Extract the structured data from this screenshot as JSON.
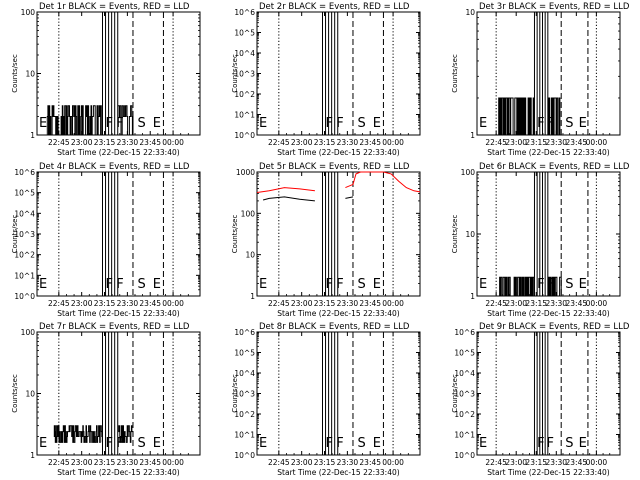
{
  "figure": {
    "xlabel": "Start Time (22-Dec-15 22:33:40)",
    "ylabel": "Counts/sec",
    "time_ticks": [
      "22:45",
      "23:00",
      "23:15",
      "23:30",
      "23:45",
      "00:00"
    ],
    "time_tick_minutes": [
      11.33,
      26.33,
      41.33,
      56.33,
      71.33,
      86.33
    ],
    "x_range_minutes": [
      -3,
      104
    ],
    "colors": {
      "events": "#000000",
      "lld": "#ff0000",
      "axis": "#000000"
    }
  },
  "chart_data": [
    {
      "type": "line",
      "title": "Det 1r BLACK = Events, RED = LLD",
      "y_scale": "log",
      "ylim": [
        1,
        100
      ],
      "ytick_labels": [
        {
          "text": "1",
          "value": 1
        },
        {
          "text": "10",
          "value": 10
        },
        {
          "text": "100",
          "value": 100
        }
      ],
      "event_markers": [
        {
          "label": "E",
          "minute": -3,
          "style": "solid"
        },
        {
          "label": "F",
          "minute": 42,
          "style": "solid"
        },
        {
          "label": "F",
          "minute": 49,
          "style": "solid"
        },
        {
          "label": "S",
          "minute": 63,
          "style": "dashed"
        },
        {
          "label": "E",
          "minute": 73,
          "style": "dashed"
        }
      ],
      "vlines": [
        {
          "minute": 40,
          "style": "solid"
        },
        {
          "minute": 42,
          "style": "solid"
        },
        {
          "minute": 44,
          "style": "solid"
        },
        {
          "minute": 46,
          "style": "solid"
        },
        {
          "minute": 48,
          "style": "solid"
        },
        {
          "minute": 50,
          "style": "solid"
        },
        {
          "minute": 60,
          "style": "dashed"
        },
        {
          "minute": 80,
          "style": "dashed"
        },
        {
          "minute": 11.33,
          "style": "dotted"
        },
        {
          "minute": 86.33,
          "style": "dotted"
        }
      ],
      "series": [
        {
          "name": "Events",
          "color": "#000000",
          "kind": "step",
          "x_start": 1,
          "x_end": 60,
          "steps": 150,
          "levels": [
            1,
            2,
            3
          ],
          "missing": [
            [
              40,
              50
            ]
          ]
        }
      ]
    },
    {
      "type": "line",
      "title": "Det 2r BLACK = Events, RED = LLD",
      "y_scale": "log",
      "ylim": [
        1,
        1000000
      ],
      "ytick_labels": [
        {
          "text": "10^0",
          "value": 1
        },
        {
          "text": "10^1",
          "value": 10
        },
        {
          "text": "10^2",
          "value": 100
        },
        {
          "text": "10^3",
          "value": 1000
        },
        {
          "text": "10^4",
          "value": 10000
        },
        {
          "text": "10^5",
          "value": 100000
        },
        {
          "text": "10^6",
          "value": 1000000
        }
      ],
      "event_markers": [
        {
          "label": "E",
          "minute": -3,
          "style": "solid"
        },
        {
          "label": "F",
          "minute": 42,
          "style": "solid"
        },
        {
          "label": "F",
          "minute": 49,
          "style": "solid"
        },
        {
          "label": "S",
          "minute": 63,
          "style": "dashed"
        },
        {
          "label": "E",
          "minute": 73,
          "style": "dashed"
        }
      ],
      "vlines": [
        {
          "minute": 40,
          "style": "solid"
        },
        {
          "minute": 42,
          "style": "solid"
        },
        {
          "minute": 44,
          "style": "solid"
        },
        {
          "minute": 46,
          "style": "solid"
        },
        {
          "minute": 48,
          "style": "solid"
        },
        {
          "minute": 50,
          "style": "solid"
        },
        {
          "minute": 60,
          "style": "dashed"
        },
        {
          "minute": 80,
          "style": "dashed"
        },
        {
          "minute": 11.33,
          "style": "dotted"
        },
        {
          "minute": 86.33,
          "style": "dotted"
        }
      ],
      "series": []
    },
    {
      "type": "line",
      "title": "Det 3r BLACK = Events, RED = LLD",
      "y_scale": "log",
      "ylim": [
        1,
        10
      ],
      "ytick_labels": [
        {
          "text": "1",
          "value": 1
        },
        {
          "text": "10",
          "value": 10
        }
      ],
      "event_markers": [
        {
          "label": "E",
          "minute": -3,
          "style": "solid"
        },
        {
          "label": "F",
          "minute": 42,
          "style": "solid"
        },
        {
          "label": "F",
          "minute": 49,
          "style": "solid"
        },
        {
          "label": "S",
          "minute": 63,
          "style": "dashed"
        },
        {
          "label": "E",
          "minute": 73,
          "style": "dashed"
        }
      ],
      "vlines": [
        {
          "minute": 40,
          "style": "solid"
        },
        {
          "minute": 42,
          "style": "solid"
        },
        {
          "minute": 44,
          "style": "solid"
        },
        {
          "minute": 46,
          "style": "solid"
        },
        {
          "minute": 48,
          "style": "solid"
        },
        {
          "minute": 50,
          "style": "solid"
        },
        {
          "minute": 60,
          "style": "dashed"
        },
        {
          "minute": 80,
          "style": "dashed"
        },
        {
          "minute": 11.33,
          "style": "dotted"
        },
        {
          "minute": 86.33,
          "style": "dotted"
        }
      ],
      "series": [
        {
          "name": "Events",
          "color": "#000000",
          "kind": "step",
          "x_start": 13,
          "x_end": 59,
          "steps": 180,
          "levels": [
            1,
            2
          ],
          "missing": [
            [
              40,
              50
            ]
          ]
        }
      ]
    },
    {
      "type": "line",
      "title": "Det 4r BLACK = Events, RED = LLD",
      "y_scale": "log",
      "ylim": [
        1,
        1000000
      ],
      "ytick_labels": [
        {
          "text": "10^0",
          "value": 1
        },
        {
          "text": "10^1",
          "value": 10
        },
        {
          "text": "10^2",
          "value": 100
        },
        {
          "text": "10^3",
          "value": 1000
        },
        {
          "text": "10^4",
          "value": 10000
        },
        {
          "text": "10^5",
          "value": 100000
        },
        {
          "text": "10^6",
          "value": 1000000
        }
      ],
      "event_markers": [
        {
          "label": "E",
          "minute": -3,
          "style": "solid"
        },
        {
          "label": "F",
          "minute": 42,
          "style": "solid"
        },
        {
          "label": "F",
          "minute": 49,
          "style": "solid"
        },
        {
          "label": "S",
          "minute": 63,
          "style": "dashed"
        },
        {
          "label": "E",
          "minute": 73,
          "style": "dashed"
        }
      ],
      "vlines": [
        {
          "minute": 40,
          "style": "solid"
        },
        {
          "minute": 42,
          "style": "solid"
        },
        {
          "minute": 44,
          "style": "solid"
        },
        {
          "minute": 46,
          "style": "solid"
        },
        {
          "minute": 48,
          "style": "solid"
        },
        {
          "minute": 50,
          "style": "solid"
        },
        {
          "minute": 60,
          "style": "dashed"
        },
        {
          "minute": 80,
          "style": "dashed"
        },
        {
          "minute": 11.33,
          "style": "dotted"
        },
        {
          "minute": 86.33,
          "style": "dotted"
        }
      ],
      "series": []
    },
    {
      "type": "line",
      "title": "Det 5r BLACK = Events, RED = LLD",
      "y_scale": "log",
      "ylim": [
        1,
        1000
      ],
      "ytick_labels": [
        {
          "text": "1",
          "value": 1
        },
        {
          "text": "10",
          "value": 10
        },
        {
          "text": "100",
          "value": 100
        },
        {
          "text": "1000",
          "value": 1000
        }
      ],
      "event_markers": [
        {
          "label": "E",
          "minute": -3,
          "style": "solid"
        },
        {
          "label": "F",
          "minute": 42,
          "style": "solid"
        },
        {
          "label": "F",
          "minute": 49,
          "style": "solid"
        },
        {
          "label": "S",
          "minute": 63,
          "style": "dashed"
        },
        {
          "label": "E",
          "minute": 73,
          "style": "dashed"
        }
      ],
      "vlines": [
        {
          "minute": 40,
          "style": "solid"
        },
        {
          "minute": 42,
          "style": "solid"
        },
        {
          "minute": 44,
          "style": "solid"
        },
        {
          "minute": 46,
          "style": "solid"
        },
        {
          "minute": 48,
          "style": "solid"
        },
        {
          "minute": 50,
          "style": "solid"
        },
        {
          "minute": 60,
          "style": "dashed"
        },
        {
          "minute": 80,
          "style": "dashed"
        },
        {
          "minute": 11.33,
          "style": "dotted"
        },
        {
          "minute": 86.33,
          "style": "dotted"
        }
      ],
      "series": [
        {
          "name": "LLD",
          "color": "#ff0000",
          "kind": "curve",
          "x": [
            -3,
            5,
            15,
            25,
            35,
            45,
            55,
            60,
            62,
            65,
            70,
            75,
            80,
            85,
            90,
            95,
            100,
            104
          ],
          "y": [
            320,
            350,
            420,
            390,
            350,
            340,
            420,
            500,
            900,
            1200,
            1300,
            1200,
            1000,
            900,
            600,
            420,
            350,
            330
          ],
          "missing": [
            [
              40,
              50
            ]
          ]
        },
        {
          "name": "Events",
          "color": "#000000",
          "kind": "curve",
          "x": [
            1,
            5,
            15,
            25,
            35,
            45,
            55,
            60
          ],
          "y": [
            210,
            230,
            250,
            220,
            200,
            190,
            230,
            250
          ],
          "missing": [
            [
              40,
              50
            ]
          ]
        }
      ]
    },
    {
      "type": "line",
      "title": "Det 6r BLACK = Events, RED = LLD",
      "y_scale": "log",
      "ylim": [
        1,
        100
      ],
      "ytick_labels": [
        {
          "text": "1",
          "value": 1
        },
        {
          "text": "10",
          "value": 10
        },
        {
          "text": "100",
          "value": 100
        }
      ],
      "event_markers": [
        {
          "label": "E",
          "minute": -3,
          "style": "solid"
        },
        {
          "label": "F",
          "minute": 42,
          "style": "solid"
        },
        {
          "label": "F",
          "minute": 49,
          "style": "solid"
        },
        {
          "label": "S",
          "minute": 63,
          "style": "dashed"
        },
        {
          "label": "E",
          "minute": 73,
          "style": "dashed"
        }
      ],
      "vlines": [
        {
          "minute": 40,
          "style": "solid"
        },
        {
          "minute": 42,
          "style": "solid"
        },
        {
          "minute": 44,
          "style": "solid"
        },
        {
          "minute": 46,
          "style": "solid"
        },
        {
          "minute": 48,
          "style": "solid"
        },
        {
          "minute": 50,
          "style": "solid"
        },
        {
          "minute": 60,
          "style": "dashed"
        },
        {
          "minute": 80,
          "style": "dashed"
        },
        {
          "minute": 11.33,
          "style": "dotted"
        },
        {
          "minute": 86.33,
          "style": "dotted"
        }
      ],
      "series": [
        {
          "name": "Events",
          "color": "#000000",
          "kind": "step",
          "x_start": 13,
          "x_end": 60,
          "steps": 160,
          "levels": [
            1,
            2
          ],
          "missing": [
            [
              40,
              50
            ]
          ]
        }
      ]
    },
    {
      "type": "line",
      "title": "Det 7r BLACK = Events, RED = LLD",
      "y_scale": "log",
      "ylim": [
        1,
        100
      ],
      "ytick_labels": [
        {
          "text": "1",
          "value": 1
        },
        {
          "text": "10",
          "value": 10
        },
        {
          "text": "100",
          "value": 100
        }
      ],
      "event_markers": [
        {
          "label": "E",
          "minute": -3,
          "style": "solid"
        },
        {
          "label": "F",
          "minute": 42,
          "style": "solid"
        },
        {
          "label": "F",
          "minute": 49,
          "style": "solid"
        },
        {
          "label": "S",
          "minute": 63,
          "style": "dashed"
        },
        {
          "label": "E",
          "minute": 73,
          "style": "dashed"
        }
      ],
      "vlines": [
        {
          "minute": 40,
          "style": "solid"
        },
        {
          "minute": 42,
          "style": "solid"
        },
        {
          "minute": 44,
          "style": "solid"
        },
        {
          "minute": 46,
          "style": "solid"
        },
        {
          "minute": 48,
          "style": "solid"
        },
        {
          "minute": 50,
          "style": "solid"
        },
        {
          "minute": 60,
          "style": "dashed"
        },
        {
          "minute": 80,
          "style": "dashed"
        },
        {
          "minute": 11.33,
          "style": "dotted"
        },
        {
          "minute": 86.33,
          "style": "dotted"
        }
      ],
      "series": [
        {
          "name": "Events",
          "color": "#000000",
          "kind": "step",
          "x_start": 8,
          "x_end": 60,
          "steps": 150,
          "levels": [
            1.6,
            2,
            2.4,
            3
          ],
          "missing": [
            [
              40,
              50
            ]
          ]
        }
      ]
    },
    {
      "type": "line",
      "title": "Det 8r BLACK = Events, RED = LLD",
      "y_scale": "log",
      "ylim": [
        1,
        1000000
      ],
      "ytick_labels": [
        {
          "text": "10^0",
          "value": 1
        },
        {
          "text": "10^1",
          "value": 10
        },
        {
          "text": "10^2",
          "value": 100
        },
        {
          "text": "10^3",
          "value": 1000
        },
        {
          "text": "10^4",
          "value": 10000
        },
        {
          "text": "10^5",
          "value": 100000
        },
        {
          "text": "10^6",
          "value": 1000000
        }
      ],
      "event_markers": [
        {
          "label": "E",
          "minute": -3,
          "style": "solid"
        },
        {
          "label": "F",
          "minute": 42,
          "style": "solid"
        },
        {
          "label": "F",
          "minute": 49,
          "style": "solid"
        },
        {
          "label": "S",
          "minute": 63,
          "style": "dashed"
        },
        {
          "label": "E",
          "minute": 73,
          "style": "dashed"
        }
      ],
      "vlines": [
        {
          "minute": 40,
          "style": "solid"
        },
        {
          "minute": 42,
          "style": "solid"
        },
        {
          "minute": 44,
          "style": "solid"
        },
        {
          "minute": 46,
          "style": "solid"
        },
        {
          "minute": 48,
          "style": "solid"
        },
        {
          "minute": 50,
          "style": "solid"
        },
        {
          "minute": 60,
          "style": "dashed"
        },
        {
          "minute": 80,
          "style": "dashed"
        },
        {
          "minute": 11.33,
          "style": "dotted"
        },
        {
          "minute": 86.33,
          "style": "dotted"
        }
      ],
      "series": []
    },
    {
      "type": "line",
      "title": "Det 9r BLACK = Events, RED = LLD",
      "y_scale": "log",
      "ylim": [
        1,
        1000000
      ],
      "ytick_labels": [
        {
          "text": "10^0",
          "value": 1
        },
        {
          "text": "10^1",
          "value": 10
        },
        {
          "text": "10^2",
          "value": 100
        },
        {
          "text": "10^3",
          "value": 1000
        },
        {
          "text": "10^4",
          "value": 10000
        },
        {
          "text": "10^5",
          "value": 100000
        },
        {
          "text": "10^6",
          "value": 1000000
        }
      ],
      "event_markers": [
        {
          "label": "E",
          "minute": -3,
          "style": "solid"
        },
        {
          "label": "F",
          "minute": 42,
          "style": "solid"
        },
        {
          "label": "F",
          "minute": 49,
          "style": "solid"
        },
        {
          "label": "S",
          "minute": 63,
          "style": "dashed"
        },
        {
          "label": "E",
          "minute": 73,
          "style": "dashed"
        }
      ],
      "vlines": [
        {
          "minute": 40,
          "style": "solid"
        },
        {
          "minute": 42,
          "style": "solid"
        },
        {
          "minute": 44,
          "style": "solid"
        },
        {
          "minute": 46,
          "style": "solid"
        },
        {
          "minute": 48,
          "style": "solid"
        },
        {
          "minute": 50,
          "style": "solid"
        },
        {
          "minute": 60,
          "style": "dashed"
        },
        {
          "minute": 80,
          "style": "dashed"
        },
        {
          "minute": 11.33,
          "style": "dotted"
        },
        {
          "minute": 86.33,
          "style": "dotted"
        }
      ],
      "series": []
    }
  ]
}
